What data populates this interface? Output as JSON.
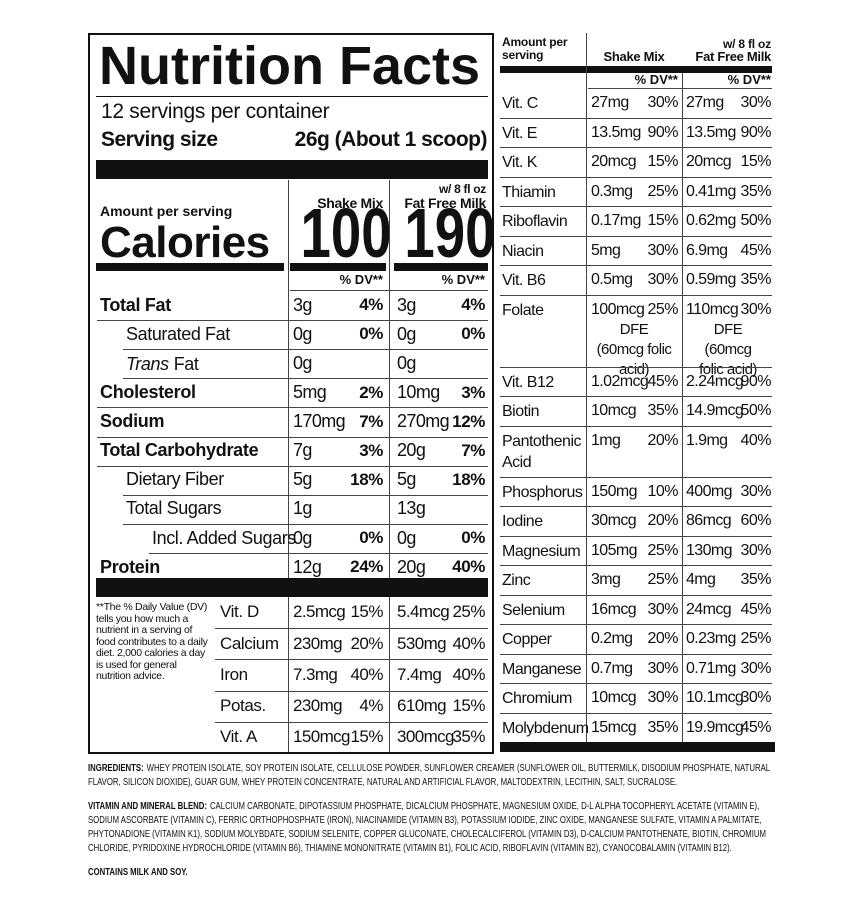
{
  "header": {
    "title": "Nutrition Facts",
    "servings": "12 servings per container",
    "serving_size_label": "Serving size",
    "serving_size": "26g (About 1 scoop)"
  },
  "calories": {
    "amount_per_serving": "Amount per serving",
    "label": "Calories"
  },
  "columns": [
    {
      "name": "Shake Mix",
      "calories": 100,
      "dv_header": "% DV**"
    },
    {
      "name_prefix": "w/ 8 fl oz",
      "name": "Fat Free Milk",
      "calories": 190,
      "dv_header": "% DV**"
    }
  ],
  "nutrients": [
    {
      "name": "Total Fat",
      "bold": true,
      "indent": 0,
      "values": [
        [
          "3g",
          "4%"
        ],
        [
          "3g",
          "4%"
        ]
      ]
    },
    {
      "name": "Saturated Fat",
      "bold": false,
      "indent": 1,
      "values": [
        [
          "0g",
          "0%"
        ],
        [
          "0g",
          "0%"
        ]
      ]
    },
    {
      "italic_prefix": "Trans",
      "name": "Fat",
      "bold": false,
      "indent": 1,
      "values": [
        [
          "0g"
        ],
        [
          "0g"
        ]
      ]
    },
    {
      "name": "Cholesterol",
      "bold": true,
      "indent": 0,
      "values": [
        [
          "5mg",
          "2%"
        ],
        [
          "10mg",
          "3%"
        ]
      ]
    },
    {
      "name": "Sodium",
      "bold": true,
      "indent": 0,
      "values": [
        [
          "170mg",
          "7%"
        ],
        [
          "270mg",
          "12%"
        ]
      ]
    },
    {
      "name": "Total Carbohydrate",
      "bold": true,
      "indent": 0,
      "values": [
        [
          "7g",
          "3%"
        ],
        [
          "20g",
          "7%"
        ]
      ]
    },
    {
      "name": "Dietary Fiber",
      "bold": false,
      "indent": 1,
      "values": [
        [
          "5g",
          "18%"
        ],
        [
          "5g",
          "18%"
        ]
      ]
    },
    {
      "name": "Total Sugars",
      "bold": false,
      "indent": 1,
      "values": [
        [
          "1g"
        ],
        [
          "13g"
        ]
      ]
    },
    {
      "name": "Incl. Added Sugars",
      "bold": false,
      "indent": 2,
      "values": [
        [
          "0g",
          "0%"
        ],
        [
          "0g",
          "0%"
        ]
      ]
    },
    {
      "name": "Protein",
      "bold": true,
      "indent": 0,
      "values": [
        [
          "12g",
          "24%"
        ],
        [
          "20g",
          "40%"
        ]
      ]
    }
  ],
  "footnote": "**The % Daily Value (DV) tells you how much a nutrient in a serving of food contributes to a daily diet. 2,000 calories a day is used for general nutrition advice.",
  "vitamins_left": [
    {
      "name": "Vit. D",
      "values": [
        [
          "2.5mcg",
          "15%"
        ],
        [
          "5.4mcg",
          "25%"
        ]
      ]
    },
    {
      "name": "Calcium",
      "values": [
        [
          "230mg",
          "20%"
        ],
        [
          "530mg",
          "40%"
        ]
      ]
    },
    {
      "name": "Iron",
      "values": [
        [
          "7.3mg",
          "40%"
        ],
        [
          "7.4mg",
          "40%"
        ]
      ]
    },
    {
      "name": "Potas.",
      "values": [
        [
          "230mg",
          "4%"
        ],
        [
          "610mg",
          "15%"
        ]
      ]
    },
    {
      "name": "Vit. A",
      "values": [
        [
          "150mcg",
          "15%"
        ],
        [
          "300mcg",
          "35%"
        ]
      ]
    }
  ],
  "vitamins_right": [
    {
      "name": "Vit. C",
      "values": [
        [
          "27mg",
          "30%"
        ],
        [
          "27mg",
          "30%"
        ]
      ]
    },
    {
      "name": "Vit. E",
      "values": [
        [
          "13.5mg",
          "90%"
        ],
        [
          "13.5mg",
          "90%"
        ]
      ]
    },
    {
      "name": "Vit. K",
      "values": [
        [
          "20mcg",
          "15%"
        ],
        [
          "20mcg",
          "15%"
        ]
      ]
    },
    {
      "name": "Thiamin",
      "values": [
        [
          "0.3mg",
          "25%"
        ],
        [
          "0.41mg",
          "35%"
        ]
      ]
    },
    {
      "name": "Riboflavin",
      "values": [
        [
          "0.17mg",
          "15%"
        ],
        [
          "0.62mg",
          "50%"
        ]
      ]
    },
    {
      "name": "Niacin",
      "values": [
        [
          "5mg",
          "30%"
        ],
        [
          "6.9mg",
          "45%"
        ]
      ]
    },
    {
      "name": "Vit. B6",
      "values": [
        [
          "0.5mg",
          "30%"
        ],
        [
          "0.59mg",
          "35%"
        ]
      ]
    },
    {
      "name": "Folate",
      "values": [
        [
          "100mcg",
          "25%",
          "DFE (60mcg folic acid)"
        ],
        [
          "110mcg",
          "30%",
          "DFE (60mcg folic acid)"
        ]
      ]
    },
    {
      "name": "Vit. B12",
      "values": [
        [
          "1.02mcg",
          "45%"
        ],
        [
          "2.24mcg",
          "90%"
        ]
      ]
    },
    {
      "name": "Biotin",
      "values": [
        [
          "10mcg",
          "35%"
        ],
        [
          "14.9mcg",
          "50%"
        ]
      ]
    },
    {
      "name": "Pantothenic Acid",
      "values": [
        [
          "1mg",
          "20%"
        ],
        [
          "1.9mg",
          "40%"
        ]
      ]
    },
    {
      "name": "Phosphorus",
      "values": [
        [
          "150mg",
          "10%"
        ],
        [
          "400mg",
          "30%"
        ]
      ]
    },
    {
      "name": "Iodine",
      "values": [
        [
          "30mcg",
          "20%"
        ],
        [
          "86mcg",
          "60%"
        ]
      ]
    },
    {
      "name": "Magnesium",
      "values": [
        [
          "105mg",
          "25%"
        ],
        [
          "130mg",
          "30%"
        ]
      ]
    },
    {
      "name": "Zinc",
      "values": [
        [
          "3mg",
          "25%"
        ],
        [
          "4mg",
          "35%"
        ]
      ]
    },
    {
      "name": "Selenium",
      "values": [
        [
          "16mcg",
          "30%"
        ],
        [
          "24mcg",
          "45%"
        ]
      ]
    },
    {
      "name": "Copper",
      "values": [
        [
          "0.2mg",
          "20%"
        ],
        [
          "0.23mg",
          "25%"
        ]
      ]
    },
    {
      "name": "Manganese",
      "values": [
        [
          "0.7mg",
          "30%"
        ],
        [
          "0.71mg",
          "30%"
        ]
      ]
    },
    {
      "name": "Chromium",
      "values": [
        [
          "10mcg",
          "30%"
        ],
        [
          "10.1mcg",
          "30%"
        ]
      ]
    },
    {
      "name": "Molybdenum",
      "values": [
        [
          "15mcg",
          "35%"
        ],
        [
          "19.9mcg",
          "45%"
        ]
      ]
    }
  ],
  "ingredients": [
    {
      "label": "INGREDIENTS:",
      "text": "WHEY PROTEIN ISOLATE, SOY PROTEIN ISOLATE, CELLULOSE POWDER, SUNFLOWER CREAMER (SUNFLOWER OIL, BUTTERMILK, DISODIUM PHOSPHATE, NATURAL FLAVOR, SILICON DIOXIDE), GUAR GUM, WHEY PROTEIN CONCENTRATE, NATURAL AND ARTIFICIAL FLAVOR, MALTODEXTRIN, LECITHIN, SALT, SUCRALOSE."
    },
    {
      "label": "VITAMIN AND MINERAL BLEND:",
      "text": "CALCIUM CARBONATE, DIPOTASSIUM PHOSPHATE, DICALCIUM PHOSPHATE, MAGNESIUM OXIDE, D-L ALPHA TOCOPHERYL ACETATE (VITAMIN E), SODIUM ASCORBATE (VITAMIN C), FERRIC ORTHOPHOSPHATE (IRON), NIACINAMIDE (VITAMIN B3), POTASSIUM IODIDE, ZINC OXIDE, MANGANESE SULFATE, VITAMIN A PALMITATE, PHYTONADIONE (VITAMIN K1), SODIUM MOLYBDATE, SODIUM SELENITE, COPPER GLUCONATE, CHOLECALCIFEROL (VITAMIN D3), D-CALCIUM PANTOTHENATE, BIOTIN, CHROMIUM CHLORIDE, PYRIDOXINE HYDROCHLORIDE (VITAMIN B6), THIAMINE MONONITRATE (VITAMIN B1), FOLIC ACID, RIBOFLAVIN (VITAMIN B2), CYANOCOBALAMIN (VITAMIN B12)."
    },
    {
      "label": "CONTAINS MILK AND SOY."
    }
  ]
}
